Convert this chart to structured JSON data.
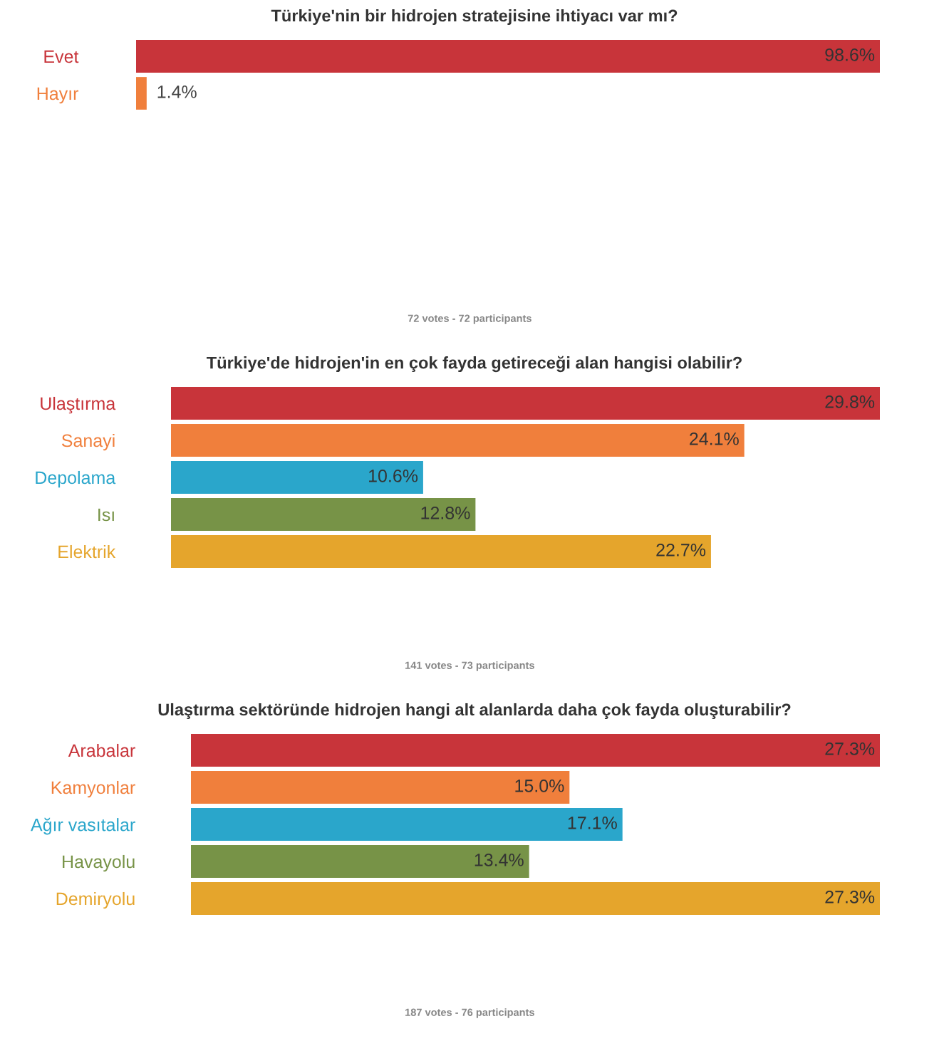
{
  "chart_data": [
    {
      "type": "bar",
      "orientation": "horizontal",
      "title": "Türkiye'nin bir hidrojen stratejisine ihtiyacı var mı?",
      "categories": [
        "Evet",
        "Hayır"
      ],
      "values": [
        98.6,
        1.4
      ],
      "colors": [
        "#c8343a",
        "#f07f3c"
      ],
      "value_labels": [
        "98.6%",
        "1.4%"
      ],
      "annotations": [
        "72 votes - 72 participants"
      ]
    },
    {
      "type": "bar",
      "orientation": "horizontal",
      "title": "Türkiye'de hidrojen'in en çok fayda getireceği alan hangisi olabilir?",
      "categories": [
        "Ulaştırma",
        "Sanayi",
        "Depolama",
        "Isı",
        "Elektrik"
      ],
      "values": [
        29.8,
        24.1,
        10.6,
        12.8,
        22.7
      ],
      "colors": [
        "#c8343a",
        "#f07f3c",
        "#2aa6cb",
        "#779347",
        "#e5a52c"
      ],
      "value_labels": [
        "29.8%",
        "24.1%",
        "10.6%",
        "12.8%",
        "22.7%"
      ],
      "annotations": [
        "141 votes - 73 participants"
      ]
    },
    {
      "type": "bar",
      "orientation": "horizontal",
      "title": "Ulaştırma sektöründe hidrojen hangi alt alanlarda daha çok fayda oluşturabilir?",
      "categories": [
        "Arabalar",
        "Kamyonlar",
        "Ağır vasıtalar",
        "Havayolu",
        "Demiryolu"
      ],
      "values": [
        27.3,
        15.0,
        17.1,
        13.4,
        27.3
      ],
      "colors": [
        "#c8343a",
        "#f07f3c",
        "#2aa6cb",
        "#779347",
        "#e5a52c"
      ],
      "value_labels": [
        "27.3%",
        "15.0%",
        "17.1%",
        "13.4%",
        "27.3%"
      ],
      "annotations": [
        "187 votes - 76 participants"
      ]
    }
  ]
}
